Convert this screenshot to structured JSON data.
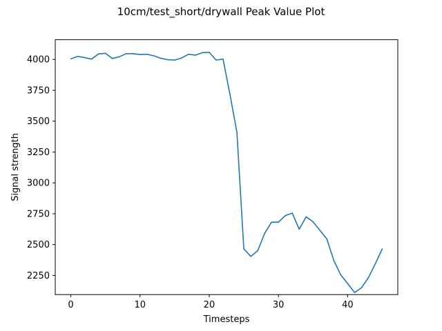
{
  "chart_data": {
    "type": "line",
    "title": "10cm/test_short/drywall Peak Value Plot",
    "xlabel": "Timesteps",
    "ylabel": "Signal strength",
    "xlim": [
      -2.25,
      47.25
    ],
    "ylim": [
      2095,
      4160
    ],
    "xticks": [
      0,
      10,
      20,
      30,
      40
    ],
    "yticks": [
      2250,
      2500,
      2750,
      3000,
      3250,
      3500,
      3750,
      4000
    ],
    "grid": false,
    "line_color": "#1f77b4",
    "series": [
      {
        "x": [
          0,
          1,
          2,
          3,
          4,
          5,
          6,
          7,
          8,
          9,
          10,
          11,
          12,
          13,
          14,
          15,
          16,
          17,
          18,
          19,
          20,
          21,
          22,
          23,
          24,
          25,
          26,
          27,
          28,
          29,
          30,
          31,
          32,
          33,
          34,
          35,
          36,
          37,
          38,
          39,
          40,
          41,
          42,
          43,
          44,
          45
        ],
        "values": [
          4005,
          4025,
          4015,
          4003,
          4045,
          4050,
          4008,
          4022,
          4047,
          4047,
          4040,
          4042,
          4030,
          4010,
          3998,
          3995,
          4012,
          4042,
          4035,
          4055,
          4058,
          3995,
          4003,
          3715,
          3410,
          2465,
          2405,
          2450,
          2590,
          2682,
          2682,
          2735,
          2755,
          2625,
          2725,
          2685,
          2615,
          2545,
          2372,
          2255,
          2185,
          2112,
          2150,
          2232,
          2345,
          2465
        ]
      }
    ]
  }
}
